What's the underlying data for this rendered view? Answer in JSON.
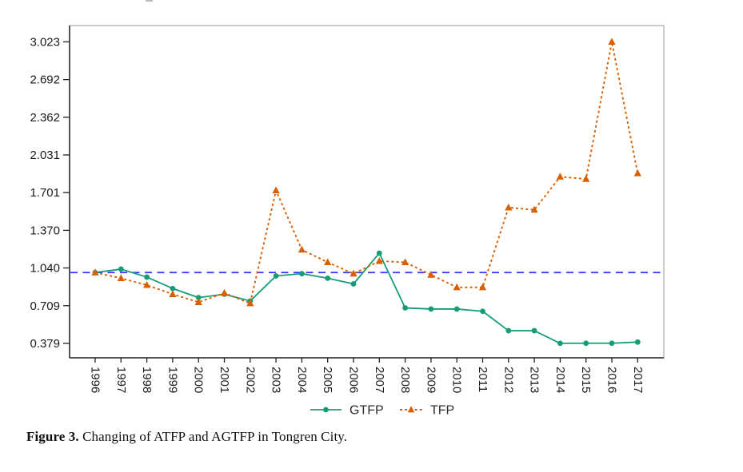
{
  "figure": {
    "caption_label": "Figure 3.",
    "caption_text": " Changing of ATFP and AGTFP in Tongren City."
  },
  "legend": {
    "gtfp_label": "GTFP",
    "tfp_label": "TFP"
  },
  "colors": {
    "gtfp": "#169d78",
    "tfp": "#d95f02",
    "reference_line": "#3333ff",
    "axis_text": "#1a1a1a",
    "panel_border": "#a8a8a8",
    "axis_line": "#222222",
    "legend_text": "#2b2b2b"
  },
  "chart_data": {
    "type": "line",
    "title": "",
    "xlabel": "",
    "ylabel": "",
    "x": [
      "1996",
      "1997",
      "1998",
      "1999",
      "2000",
      "2001",
      "2002",
      "2003",
      "2004",
      "2005",
      "2006",
      "2007",
      "2008",
      "2009",
      "2010",
      "2011",
      "2012",
      "2013",
      "2014",
      "2015",
      "2016",
      "2017"
    ],
    "series": [
      {
        "name": "GTFP",
        "marker": "circle",
        "line_style": "solid",
        "color": "#169d78",
        "values": [
          1.0,
          1.03,
          0.96,
          0.86,
          0.78,
          0.81,
          0.75,
          0.97,
          0.99,
          0.95,
          0.9,
          1.17,
          0.69,
          0.68,
          0.68,
          0.66,
          0.49,
          0.49,
          0.379,
          0.38,
          0.38,
          0.39
        ]
      },
      {
        "name": "TFP",
        "marker": "triangle",
        "line_style": "dashed",
        "color": "#d95f02",
        "values": [
          1.0,
          0.95,
          0.89,
          0.81,
          0.74,
          0.82,
          0.73,
          1.72,
          1.2,
          1.09,
          0.99,
          1.1,
          1.09,
          0.98,
          0.87,
          0.87,
          1.57,
          1.55,
          1.84,
          1.82,
          3.023,
          1.87
        ]
      }
    ],
    "y_tick_labels": [
      "0.379",
      "0.709",
      "1.040",
      "1.370",
      "1.701",
      "2.031",
      "2.362",
      "2.692",
      "3.023"
    ],
    "ylim": [
      0.379,
      3.023
    ],
    "reference_line": {
      "value": 1.0,
      "style": "dashed",
      "color": "#3333ff"
    },
    "grid": false,
    "legend_position": "bottom-center",
    "x_tick_rotation_deg": 90
  }
}
